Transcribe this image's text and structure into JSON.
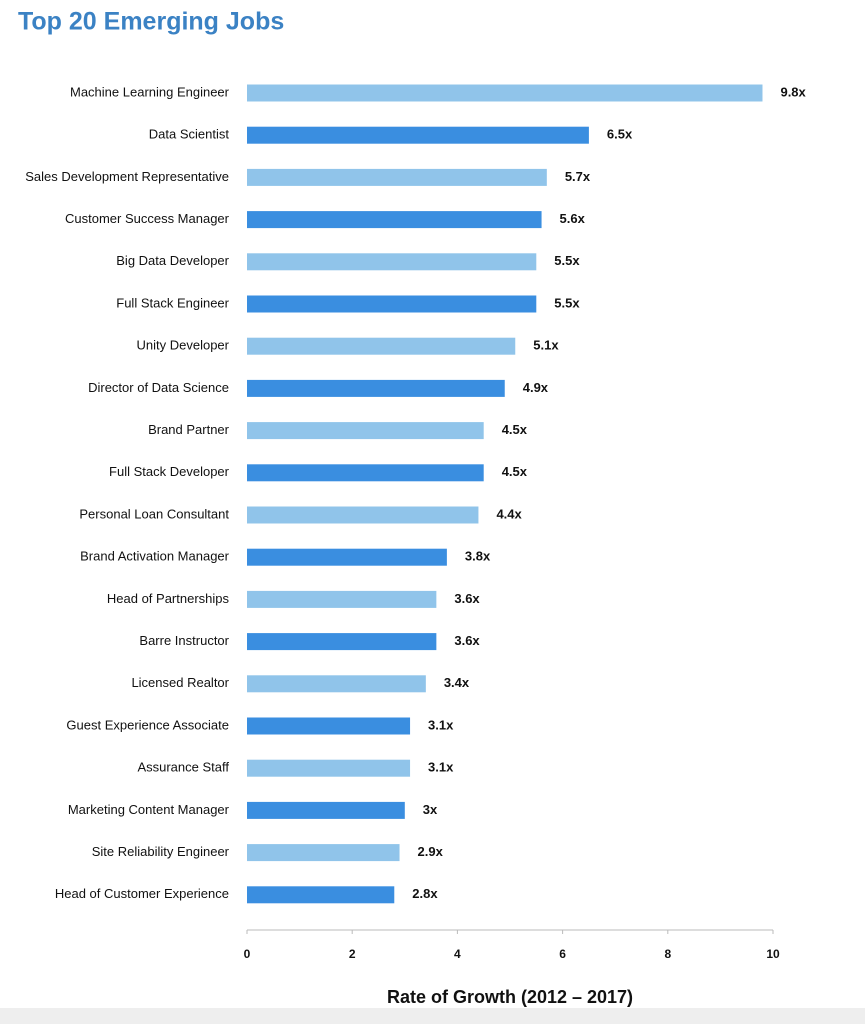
{
  "chart_data": {
    "type": "barh",
    "title": "Top 20 Emerging Jobs",
    "categories": [
      "Machine Learning Engineer",
      "Data Scientist",
      "Sales Development Representative",
      "Customer Success Manager",
      "Big Data Developer",
      "Full Stack Engineer",
      "Unity Developer",
      "Director of Data Science",
      "Brand Partner",
      "Full Stack Developer",
      "Personal Loan Consultant",
      "Brand Activation Manager",
      "Head of Partnerships",
      "Barre Instructor",
      "Licensed Realtor",
      "Guest Experience Associate",
      "Assurance Staff",
      "Marketing Content Manager",
      "Site Reliability Engineer",
      "Head of Customer Experience"
    ],
    "values": [
      9.8,
      6.5,
      5.7,
      5.6,
      5.5,
      5.5,
      5.1,
      4.9,
      4.5,
      4.5,
      4.4,
      3.8,
      3.6,
      3.6,
      3.4,
      3.1,
      3.1,
      3,
      2.9,
      2.8
    ],
    "value_labels": [
      "9.8x",
      "6.5x",
      "5.7x",
      "5.6x",
      "5.5x",
      "5.5x",
      "5.1x",
      "4.9x",
      "4.5x",
      "4.5x",
      "4.4x",
      "3.8x",
      "3.6x",
      "3.6x",
      "3.4x",
      "3.1x",
      "3.1x",
      "3x",
      "2.9x",
      "2.8x"
    ],
    "colors": [
      "#90c4ea",
      "#3a8ee0"
    ],
    "xlim": [
      0,
      10
    ],
    "xticks": [
      0,
      2,
      4,
      6,
      8,
      10
    ],
    "xlabel": "Rate of Growth (2012 – 2017)"
  }
}
